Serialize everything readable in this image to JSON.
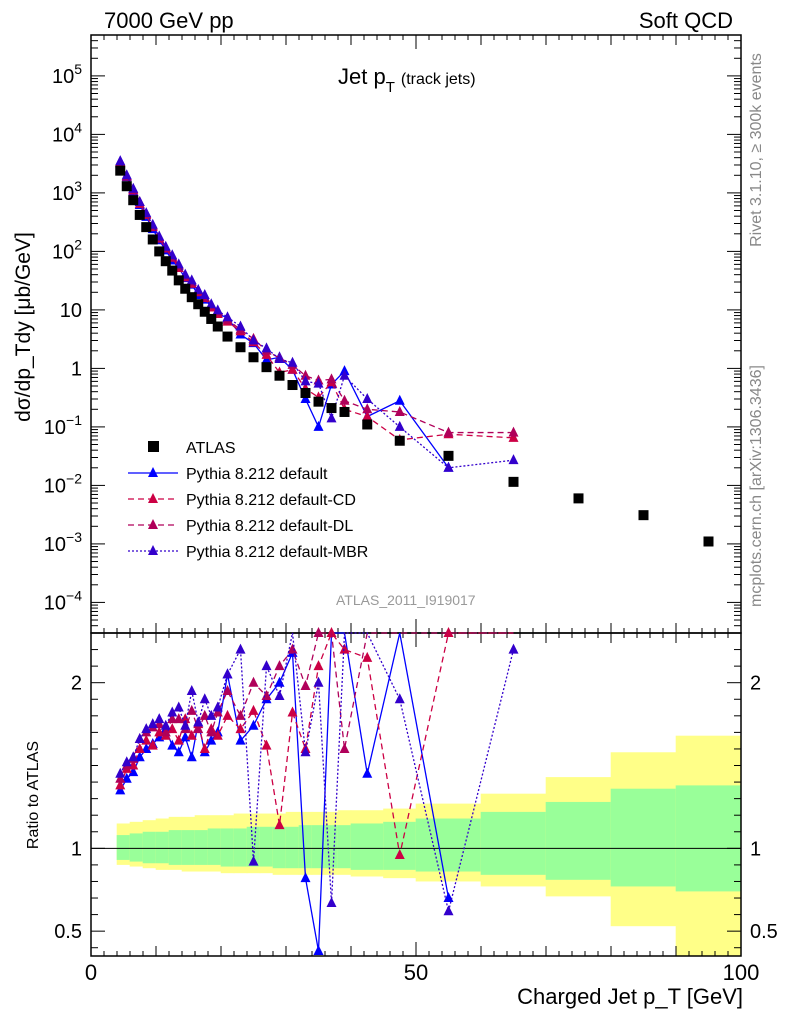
{
  "header": {
    "left": "7000 GeV pp",
    "right": "Soft QCD"
  },
  "plot_title": {
    "main": "Jet p",
    "sub": "T",
    "extra": "(track jets)"
  },
  "ylabel_top": "dσ/dp_Tdy [μb/GeV]",
  "ylabel_bottom": "Ratio to ATLAS",
  "xlabel": "Charged Jet p_T [GeV]",
  "side_text_rivet": "Rivet 3.1.10, ≥ 300k events",
  "side_text_mcplots": "mcplots.cern.ch [arXiv:1306.3436]",
  "analysis_label": "ATLAS_2011_I919017",
  "colors": {
    "atlas": "#000000",
    "default": "#0000ff",
    "cd": "#cc0044",
    "dl": "#b0005a",
    "mbr": "#3300cc",
    "band_inner": "#99ff99",
    "band_outer": "#ffff88"
  },
  "legend": [
    {
      "label": "ATLAS",
      "key": "atlas"
    },
    {
      "label": "Pythia 8.212 default",
      "key": "default"
    },
    {
      "label": "Pythia 8.212 default-CD",
      "key": "cd"
    },
    {
      "label": "Pythia 8.212 default-DL",
      "key": "dl"
    },
    {
      "label": "Pythia 8.212 default-MBR",
      "key": "mbr"
    }
  ],
  "chart_data": {
    "type": "scatter",
    "x_range": [
      0,
      100
    ],
    "x_ticks": [
      0,
      50,
      100
    ],
    "top": {
      "y_scale": "log",
      "y_range": [
        3e-05,
        500000
      ],
      "y_ticks": [
        "10^-4",
        "10^-3",
        "10^-2",
        "10^-1",
        "1",
        "10",
        "10^2",
        "10^3",
        "10^4",
        "10^5"
      ]
    },
    "bottom": {
      "y_range": [
        0.35,
        2.3
      ],
      "y_ticks": [
        0.5,
        1,
        2
      ]
    },
    "atlas": {
      "x": [
        4.5,
        5.5,
        6.5,
        7.5,
        8.5,
        9.5,
        10.5,
        11.5,
        12.5,
        13.5,
        14.5,
        15.5,
        16.5,
        17.5,
        18.5,
        19.5,
        21,
        23,
        25,
        27,
        29,
        31,
        33,
        35,
        37,
        39,
        42.5,
        47.5,
        55,
        65,
        75,
        85,
        95
      ],
      "y": [
        2400,
        1300,
        750,
        420,
        260,
        160,
        100,
        68,
        47,
        32,
        23,
        16.5,
        12.5,
        9.3,
        7.0,
        5.2,
        3.5,
        2.3,
        1.55,
        1.05,
        0.75,
        0.52,
        0.38,
        0.27,
        0.21,
        0.18,
        0.11,
        0.058,
        0.032,
        0.0115,
        0.006,
        0.0031,
        0.0011
      ],
      "band_edges": [
        4,
        6,
        8,
        10,
        12,
        14,
        16,
        18,
        20,
        22,
        24,
        26,
        28,
        30,
        32,
        34,
        36,
        38,
        40,
        45,
        50,
        60,
        70,
        80,
        90,
        100
      ],
      "band_inner": [
        [
          0.93,
          1.08
        ],
        [
          0.92,
          1.09
        ],
        [
          0.91,
          1.1
        ],
        [
          0.91,
          1.1
        ],
        [
          0.9,
          1.11
        ],
        [
          0.9,
          1.11
        ],
        [
          0.9,
          1.11
        ],
        [
          0.9,
          1.12
        ],
        [
          0.89,
          1.12
        ],
        [
          0.89,
          1.12
        ],
        [
          0.89,
          1.13
        ],
        [
          0.89,
          1.13
        ],
        [
          0.88,
          1.13
        ],
        [
          0.88,
          1.13
        ],
        [
          0.88,
          1.14
        ],
        [
          0.88,
          1.14
        ],
        [
          0.88,
          1.14
        ],
        [
          0.88,
          1.14
        ],
        [
          0.87,
          1.15
        ],
        [
          0.87,
          1.16
        ],
        [
          0.86,
          1.18
        ],
        [
          0.84,
          1.22
        ],
        [
          0.81,
          1.28
        ],
        [
          0.77,
          1.36
        ],
        [
          0.74,
          1.38
        ]
      ],
      "band_outer": [
        [
          0.9,
          1.15
        ],
        [
          0.89,
          1.16
        ],
        [
          0.88,
          1.17
        ],
        [
          0.87,
          1.18
        ],
        [
          0.87,
          1.19
        ],
        [
          0.86,
          1.19
        ],
        [
          0.86,
          1.2
        ],
        [
          0.86,
          1.2
        ],
        [
          0.85,
          1.2
        ],
        [
          0.85,
          1.21
        ],
        [
          0.85,
          1.21
        ],
        [
          0.85,
          1.21
        ],
        [
          0.84,
          1.21
        ],
        [
          0.84,
          1.22
        ],
        [
          0.84,
          1.22
        ],
        [
          0.84,
          1.22
        ],
        [
          0.84,
          1.22
        ],
        [
          0.84,
          1.23
        ],
        [
          0.83,
          1.23
        ],
        [
          0.82,
          1.24
        ],
        [
          0.8,
          1.27
        ],
        [
          0.77,
          1.33
        ],
        [
          0.71,
          1.43
        ],
        [
          0.53,
          1.58
        ],
        [
          0.35,
          1.68
        ]
      ]
    },
    "series": [
      {
        "name": "Pythia 8.212 default",
        "key": "default",
        "style": "solid",
        "x": [
          4.5,
          5.5,
          6.5,
          7.5,
          8.5,
          9.5,
          10.5,
          11.5,
          12.5,
          13.5,
          14.5,
          15.5,
          16.5,
          17.5,
          18.5,
          19.5,
          21,
          23,
          25,
          27,
          29,
          31,
          33,
          35,
          37,
          39,
          42.5,
          47.5,
          55
        ],
        "y": [
          3200,
          1850,
          1050,
          620,
          390,
          240,
          155,
          104,
          70,
          52,
          35,
          27,
          18,
          15,
          11.5,
          8.8,
          7.2,
          3.8,
          2.7,
          1.4,
          1.55,
          0.95,
          0.3,
          0.1,
          0.53,
          0.9,
          0.15,
          0.28,
          0.02
        ],
        "ratio": [
          1.35,
          1.42,
          1.46,
          1.55,
          1.6,
          1.63,
          1.67,
          1.72,
          1.62,
          1.58,
          1.67,
          1.55,
          1.76,
          1.58,
          1.65,
          1.7,
          2.05,
          1.65,
          1.74,
          1.9,
          2.0,
          2.18,
          0.82,
          0.38,
          2.5,
          2.5,
          1.45,
          2.4,
          0.7
        ]
      },
      {
        "name": "Pythia 8.212 default-CD",
        "key": "cd",
        "style": "dashed",
        "x": [
          4.5,
          5.5,
          6.5,
          7.5,
          8.5,
          9.5,
          10.5,
          11.5,
          12.5,
          13.5,
          14.5,
          15.5,
          16.5,
          17.5,
          18.5,
          19.5,
          21,
          23,
          25,
          27,
          29,
          31,
          33,
          35,
          37,
          39,
          42.5,
          47.5,
          55,
          65
        ],
        "y": [
          3300,
          1900,
          1100,
          650,
          420,
          260,
          165,
          112,
          78,
          52,
          36,
          28,
          20,
          16,
          11,
          8.5,
          6.3,
          4.3,
          2.8,
          1.7,
          0.85,
          0.95,
          0.45,
          0.32,
          0.58,
          0.2,
          0.15,
          0.06,
          0.075,
          0.065
        ],
        "ratio": [
          1.38,
          1.48,
          1.5,
          1.6,
          1.65,
          1.62,
          1.7,
          1.68,
          1.72,
          1.65,
          1.78,
          1.68,
          1.75,
          1.6,
          1.72,
          1.68,
          1.8,
          1.72,
          1.83,
          1.62,
          1.14,
          1.82,
          1.6,
          2.1,
          2.3,
          2.2,
          2.15,
          0.96,
          2.3,
          2.45
        ]
      },
      {
        "name": "Pythia 8.212 default-DL",
        "key": "dl",
        "style": "dashed",
        "x": [
          4.5,
          5.5,
          6.5,
          7.5,
          8.5,
          9.5,
          10.5,
          11.5,
          12.5,
          13.5,
          14.5,
          15.5,
          16.5,
          17.5,
          18.5,
          19.5,
          21,
          23,
          25,
          27,
          29,
          31,
          33,
          35,
          37,
          39,
          42.5,
          47.5,
          55,
          65
        ],
        "y": [
          3400,
          1950,
          1150,
          700,
          440,
          275,
          175,
          115,
          82,
          57,
          38,
          30,
          21,
          16.5,
          12,
          9.5,
          6.8,
          4.6,
          3.2,
          2.0,
          1.5,
          1.15,
          0.75,
          0.62,
          0.65,
          0.28,
          0.2,
          0.18,
          0.08,
          0.08
        ],
        "ratio": [
          1.42,
          1.5,
          1.54,
          1.66,
          1.7,
          1.73,
          1.75,
          1.7,
          1.78,
          1.78,
          1.72,
          1.83,
          1.72,
          1.8,
          1.7,
          1.82,
          1.95,
          1.8,
          2.0,
          1.92,
          2.1,
          2.2,
          1.98,
          2.3,
          2.5,
          1.6,
          2.4,
          3.0,
          2.6,
          2.6
        ]
      },
      {
        "name": "Pythia 8.212 default-MBR",
        "key": "mbr",
        "style": "dotted",
        "x": [
          4.5,
          5.5,
          6.5,
          7.5,
          8.5,
          9.5,
          10.5,
          11.5,
          12.5,
          13.5,
          14.5,
          15.5,
          16.5,
          17.5,
          18.5,
          19.5,
          21,
          23,
          25,
          27,
          29,
          31,
          33,
          35,
          37,
          39,
          42.5,
          47.5,
          55,
          65
        ],
        "y": [
          3500,
          2000,
          1180,
          700,
          450,
          285,
          180,
          120,
          86,
          60,
          40,
          32,
          22,
          18,
          12.5,
          9.8,
          7.5,
          5.2,
          3.0,
          2.2,
          1.45,
          1.25,
          0.6,
          0.55,
          0.14,
          0.75,
          0.3,
          0.1,
          0.02,
          0.027
        ],
        "ratio": [
          1.45,
          1.52,
          1.55,
          1.66,
          1.72,
          1.75,
          1.78,
          1.74,
          1.82,
          1.85,
          1.74,
          1.95,
          1.76,
          1.9,
          1.8,
          1.85,
          2.05,
          2.2,
          0.92,
          2.1,
          1.92,
          2.4,
          1.58,
          2.0,
          0.67,
          2.4,
          2.5,
          1.9,
          0.62,
          2.2
        ]
      }
    ]
  }
}
